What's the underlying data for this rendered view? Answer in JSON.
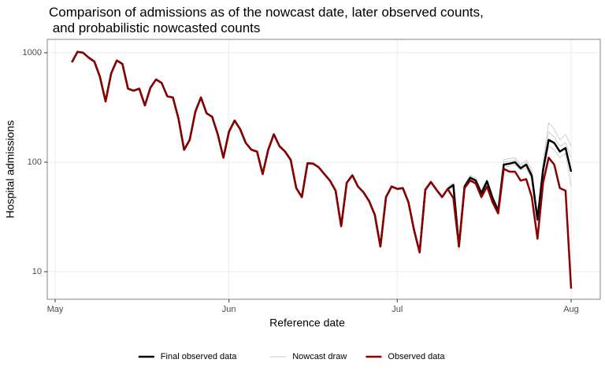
{
  "chart_data": {
    "type": "line",
    "title": "Comparison of admissions as of the nowcast date, later observed counts,\n and probabilistic nowcasted counts",
    "xlabel": "Reference date",
    "ylabel": "Hospital admissions",
    "log_y": true,
    "grid": true,
    "legend": "bottom",
    "xlim": [
      -1.4,
      97.2
    ],
    "xticks": [
      {
        "value": 0,
        "label": "May"
      },
      {
        "value": 31,
        "label": "Jun"
      },
      {
        "value": 61,
        "label": "Jul"
      },
      {
        "value": 92,
        "label": "Aug"
      }
    ],
    "ylim": [
      5.6,
      1325
    ],
    "yticks": [
      10,
      100,
      1000
    ],
    "x": [
      3,
      4,
      5,
      6,
      7,
      8,
      9,
      10,
      11,
      12,
      13,
      14,
      15,
      16,
      17,
      18,
      19,
      20,
      21,
      22,
      23,
      24,
      25,
      26,
      27,
      28,
      29,
      30,
      31,
      32,
      33,
      34,
      35,
      36,
      37,
      38,
      39,
      40,
      41,
      42,
      43,
      44,
      45,
      46,
      47,
      48,
      49,
      50,
      51,
      52,
      53,
      54,
      55,
      56,
      57,
      58,
      59,
      60,
      61,
      62,
      63,
      64,
      65,
      66,
      67,
      68,
      69,
      70,
      71,
      72,
      73,
      74,
      75,
      76,
      77,
      78,
      79,
      80,
      81,
      82,
      83,
      84,
      85,
      86,
      87,
      88,
      89,
      90,
      91,
      92
    ],
    "series": [
      {
        "name": "Final observed data",
        "color": "#000000",
        "values": [
          820,
          1020,
          1000,
          900,
          830,
          600,
          360,
          650,
          850,
          790,
          470,
          450,
          470,
          330,
          480,
          570,
          530,
          400,
          390,
          250,
          130,
          160,
          290,
          390,
          280,
          260,
          180,
          110,
          190,
          240,
          200,
          150,
          130,
          125,
          78,
          130,
          180,
          140,
          125,
          105,
          58,
          48,
          98,
          97,
          90,
          78,
          68,
          55,
          26,
          65,
          76,
          60,
          53,
          44,
          33,
          17,
          48,
          60,
          57,
          58,
          43,
          24,
          15,
          56,
          66,
          56,
          48,
          57,
          62,
          17,
          60,
          72,
          68,
          52,
          67,
          47,
          36,
          95,
          97,
          100,
          88,
          95,
          75,
          30,
          85,
          160,
          150,
          125,
          135,
          82
        ]
      },
      {
        "name": "Nowcast draw",
        "color": "#c4c4c4",
        "x": [
          70,
          71,
          72,
          73,
          74,
          75,
          76,
          77,
          78,
          79,
          80,
          81,
          82,
          83,
          84,
          85,
          86,
          87,
          88,
          89,
          90,
          91,
          92
        ],
        "draws": [
          [
            60,
            64,
            18,
            62,
            76,
            72,
            55,
            70,
            50,
            38,
            100,
            102,
            105,
            92,
            100,
            80,
            32,
            95,
            190,
            170,
            140,
            150,
            110
          ],
          [
            55,
            60,
            16,
            58,
            70,
            65,
            50,
            64,
            44,
            34,
            90,
            92,
            95,
            85,
            88,
            70,
            28,
            78,
            140,
            130,
            110,
            120,
            60
          ],
          [
            58,
            63,
            17,
            61,
            74,
            70,
            54,
            69,
            49,
            38,
            105,
            108,
            110,
            95,
            105,
            85,
            34,
            100,
            230,
            200,
            160,
            180,
            140
          ]
        ]
      },
      {
        "name": "Observed data",
        "color": "#8b0000",
        "values": [
          820,
          1020,
          1000,
          900,
          830,
          600,
          360,
          650,
          850,
          790,
          470,
          450,
          470,
          330,
          480,
          570,
          530,
          400,
          390,
          250,
          130,
          160,
          290,
          390,
          280,
          260,
          180,
          110,
          190,
          240,
          200,
          150,
          130,
          125,
          78,
          130,
          180,
          140,
          125,
          105,
          58,
          48,
          98,
          97,
          90,
          78,
          68,
          55,
          26,
          65,
          76,
          60,
          53,
          44,
          33,
          17,
          48,
          60,
          57,
          58,
          43,
          24,
          15,
          56,
          66,
          56,
          48,
          57,
          47,
          17,
          58,
          68,
          64,
          48,
          60,
          43,
          34,
          87,
          82,
          82,
          68,
          70,
          48,
          20,
          65,
          110,
          95,
          58,
          55,
          7
        ]
      }
    ]
  }
}
